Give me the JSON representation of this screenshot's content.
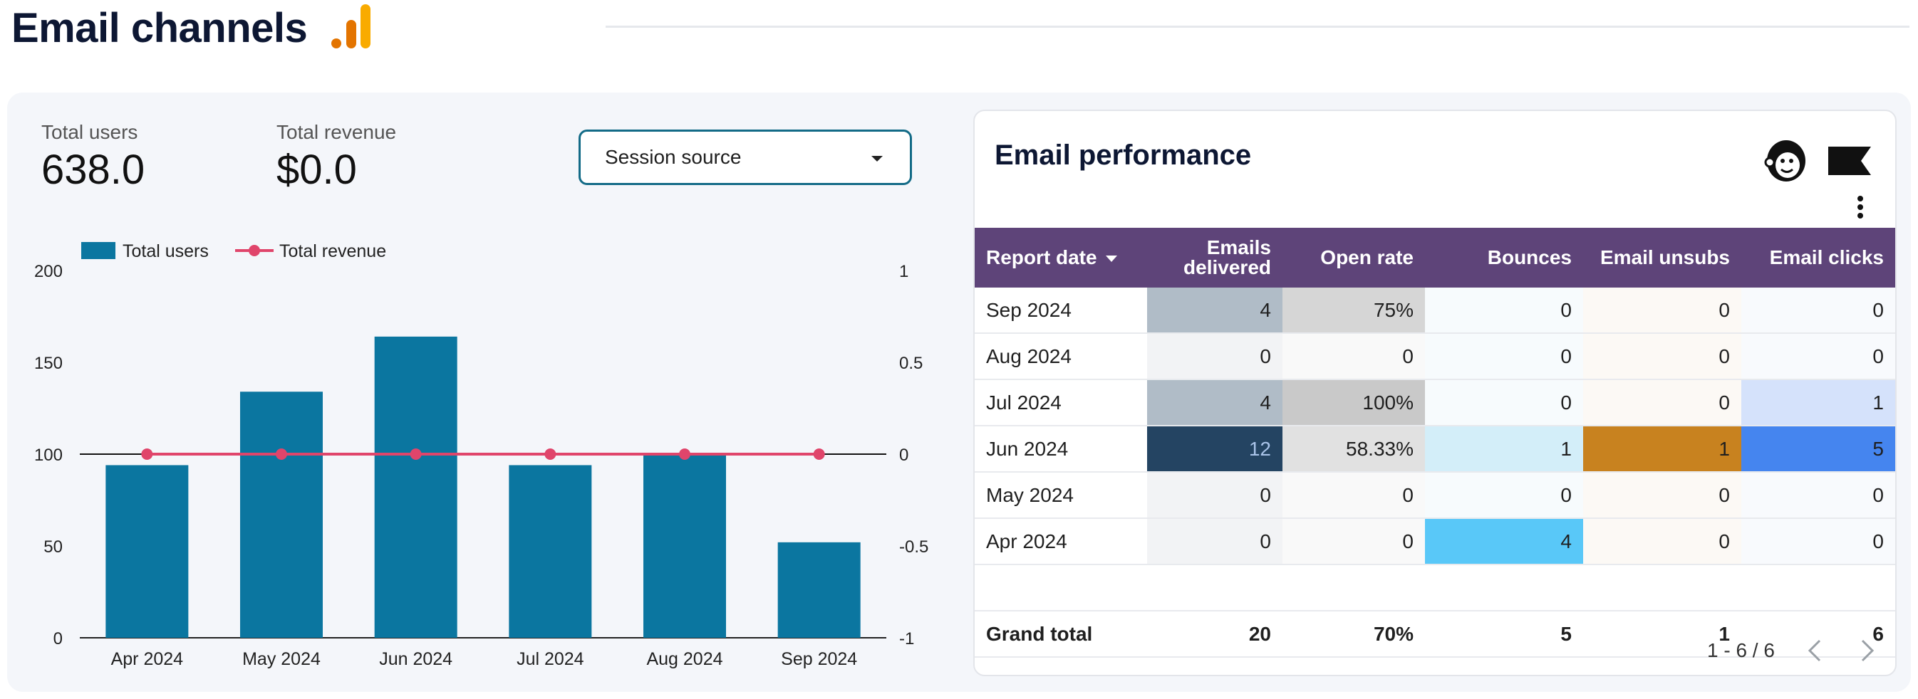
{
  "page": {
    "title": "Email channels"
  },
  "kpis": [
    {
      "label": "Total users",
      "value": "638.0"
    },
    {
      "label": "Total revenue",
      "value": "$0.0"
    }
  ],
  "filter": {
    "label": "Session source"
  },
  "chart_data": {
    "type": "bar",
    "categories": [
      "Apr 2024",
      "May 2024",
      "Jun 2024",
      "Jul 2024",
      "Aug 2024",
      "Sep 2024"
    ],
    "series": [
      {
        "name": "Total users",
        "type": "bar",
        "axis": "left",
        "color": "#0b76a0",
        "values": [
          94,
          134,
          164,
          94,
          100,
          52
        ]
      },
      {
        "name": "Total revenue",
        "type": "line",
        "axis": "right",
        "color": "#e0456b",
        "values": [
          0,
          0,
          0,
          0,
          0,
          0
        ]
      }
    ],
    "left_axis": {
      "ticks": [
        "200",
        "150",
        "100",
        "50",
        "0"
      ],
      "ylim": [
        0,
        200
      ]
    },
    "right_axis": {
      "ticks": [
        "1",
        "0.5",
        "0",
        "-0.5",
        "-1"
      ],
      "ylim": [
        -1,
        1
      ]
    },
    "legend_position": "top-left"
  },
  "table": {
    "title": "Email performance",
    "columns": [
      "Report date",
      "Emails delivered",
      "Open rate",
      "Bounces",
      "Email unsubs",
      "Email clicks"
    ],
    "rows": [
      [
        "Sep 2024",
        "4",
        "75%",
        "0",
        "0",
        "0"
      ],
      [
        "Aug 2024",
        "0",
        "0",
        "0",
        "0",
        "0"
      ],
      [
        "Jul 2024",
        "4",
        "100%",
        "0",
        "0",
        "1"
      ],
      [
        "Jun 2024",
        "12",
        "58.33%",
        "1",
        "1",
        "5"
      ],
      [
        "May 2024",
        "0",
        "0",
        "0",
        "0",
        "0"
      ],
      [
        "Apr 2024",
        "0",
        "0",
        "4",
        "0",
        "0"
      ]
    ],
    "cell_colors": [
      [
        null,
        "#b0bcc7",
        "#d6d6d6",
        "#f7fbfd",
        "#fcf9f5",
        "#f8fafd"
      ],
      [
        null,
        "#f2f3f5",
        "#f9f9f9",
        "#f7fbfd",
        "#fcf9f5",
        "#f8fafd"
      ],
      [
        null,
        "#b0bcc7",
        "#c9c9c9",
        "#f7fbfd",
        "#fcf9f5",
        "#d5e2fb"
      ],
      [
        null,
        "#244462",
        "#e1e1e1",
        "#d3eef9",
        "#c8821f",
        "#4585ef"
      ],
      [
        null,
        "#f2f3f5",
        "#f9f9f9",
        "#f7fbfd",
        "#fcf9f5",
        "#f8fafd"
      ],
      [
        null,
        "#f2f3f5",
        "#f9f9f9",
        "#59c8f8",
        "#fcf9f5",
        "#f8fafd"
      ]
    ],
    "cell_text_colors": [
      [
        null,
        null,
        null,
        null,
        null,
        null
      ],
      [
        null,
        null,
        null,
        null,
        null,
        null
      ],
      [
        null,
        null,
        null,
        null,
        null,
        null
      ],
      [
        null,
        "#a9c3e8",
        null,
        null,
        null,
        null
      ],
      [
        null,
        null,
        null,
        null,
        null,
        null
      ],
      [
        null,
        null,
        null,
        null,
        null,
        null
      ]
    ],
    "total": [
      "Grand total",
      "20",
      "70%",
      "5",
      "1",
      "6"
    ],
    "pagination": "1 - 6 / 6"
  }
}
